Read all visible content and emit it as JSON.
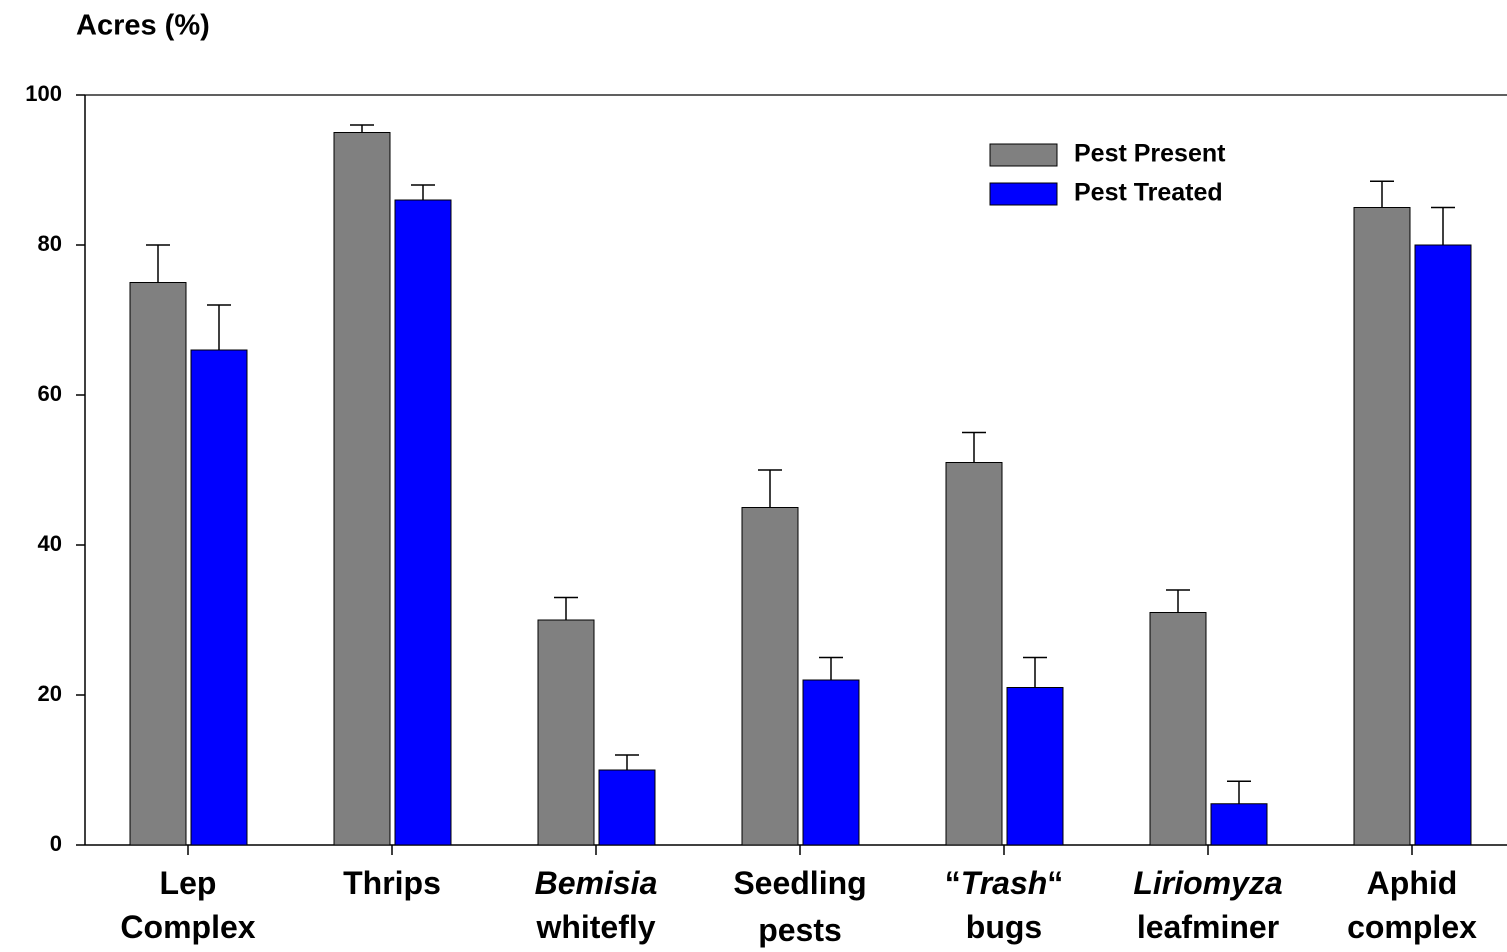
{
  "chart_data": {
    "type": "bar",
    "title": "Acres (%)",
    "categories": [
      [
        [
          "Lep"
        ],
        [
          "Complex"
        ]
      ],
      [
        [
          "Thrips"
        ]
      ],
      [
        [
          {
            "text": "Bemisia",
            "italic": true
          }
        ],
        [
          "whitefly"
        ]
      ],
      [
        [
          "Seedling"
        ],
        [
          "pests"
        ]
      ],
      [
        [
          "“",
          {
            "text": "Trash",
            "italic": true
          },
          "“"
        ],
        [
          "bugs"
        ]
      ],
      [
        [
          {
            "text": "Liriomyza",
            "italic": true
          }
        ],
        [
          "leafminer"
        ]
      ],
      [
        [
          "Aphid"
        ],
        [
          "complex"
        ]
      ]
    ],
    "series": [
      {
        "name": "Pest Present",
        "color": "#808080",
        "values": [
          75,
          95,
          30,
          45,
          51,
          31,
          85
        ],
        "errors": [
          5,
          1,
          3,
          5,
          4,
          3,
          3.5
        ]
      },
      {
        "name": "Pest Treated",
        "color": "#0000ff",
        "values": [
          66,
          86,
          10,
          22,
          21,
          5.5,
          80
        ],
        "errors": [
          6,
          2,
          2,
          3,
          4,
          3,
          5
        ]
      }
    ],
    "ylim": [
      0,
      100
    ],
    "yticks": [
      0,
      20,
      40,
      60,
      80,
      100
    ],
    "legend": "upper right"
  }
}
